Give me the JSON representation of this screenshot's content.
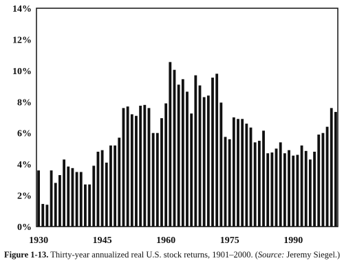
{
  "chart_data": {
    "type": "bar",
    "title": "",
    "xlabel": "",
    "ylabel": "",
    "ylim": [
      0,
      14
    ],
    "yticks": [
      "0%",
      "2%",
      "4%",
      "6%",
      "8%",
      "10%",
      "12%",
      "14%"
    ],
    "xlim": [
      1930,
      2000
    ],
    "xticks": [
      "1930",
      "1945",
      "1960",
      "1975",
      "1990"
    ],
    "grid": false,
    "x": [
      1930,
      1931,
      1932,
      1933,
      1934,
      1935,
      1936,
      1937,
      1938,
      1939,
      1940,
      1941,
      1942,
      1943,
      1944,
      1945,
      1946,
      1947,
      1948,
      1949,
      1950,
      1951,
      1952,
      1953,
      1954,
      1955,
      1956,
      1957,
      1958,
      1959,
      1960,
      1961,
      1962,
      1963,
      1964,
      1965,
      1966,
      1967,
      1968,
      1969,
      1970,
      1971,
      1972,
      1973,
      1974,
      1975,
      1976,
      1977,
      1978,
      1979,
      1980,
      1981,
      1982,
      1983,
      1984,
      1985,
      1986,
      1987,
      1988,
      1989,
      1990,
      1991,
      1992,
      1993,
      1994,
      1995,
      1996,
      1997,
      1998,
      1999,
      2000
    ],
    "values": [
      3.6,
      1.45,
      1.4,
      3.6,
      2.8,
      3.3,
      4.3,
      3.85,
      3.75,
      3.5,
      3.5,
      2.7,
      2.7,
      3.9,
      4.8,
      4.9,
      4.1,
      5.2,
      5.2,
      5.7,
      7.6,
      7.7,
      7.2,
      7.1,
      7.75,
      7.8,
      7.6,
      6.0,
      6.0,
      6.95,
      7.9,
      10.55,
      10.05,
      9.1,
      9.45,
      8.65,
      7.25,
      9.7,
      9.05,
      8.3,
      8.4,
      9.55,
      9.8,
      7.95,
      5.75,
      5.6,
      7.0,
      6.9,
      6.9,
      6.6,
      6.35,
      5.4,
      5.5,
      6.15,
      4.7,
      4.75,
      5.0,
      5.4,
      4.7,
      4.9,
      4.55,
      4.6,
      5.2,
      4.85,
      4.3,
      4.8,
      5.9,
      6.0,
      6.4,
      7.6,
      7.35
    ]
  },
  "caption": {
    "figure_label": "Figure 1-13.",
    "text": " Thirty-year annualized real U.S. stock returns, 1901–2000. (",
    "source_label": "Source:",
    "source_text": " Jeremy Siegel.)"
  }
}
